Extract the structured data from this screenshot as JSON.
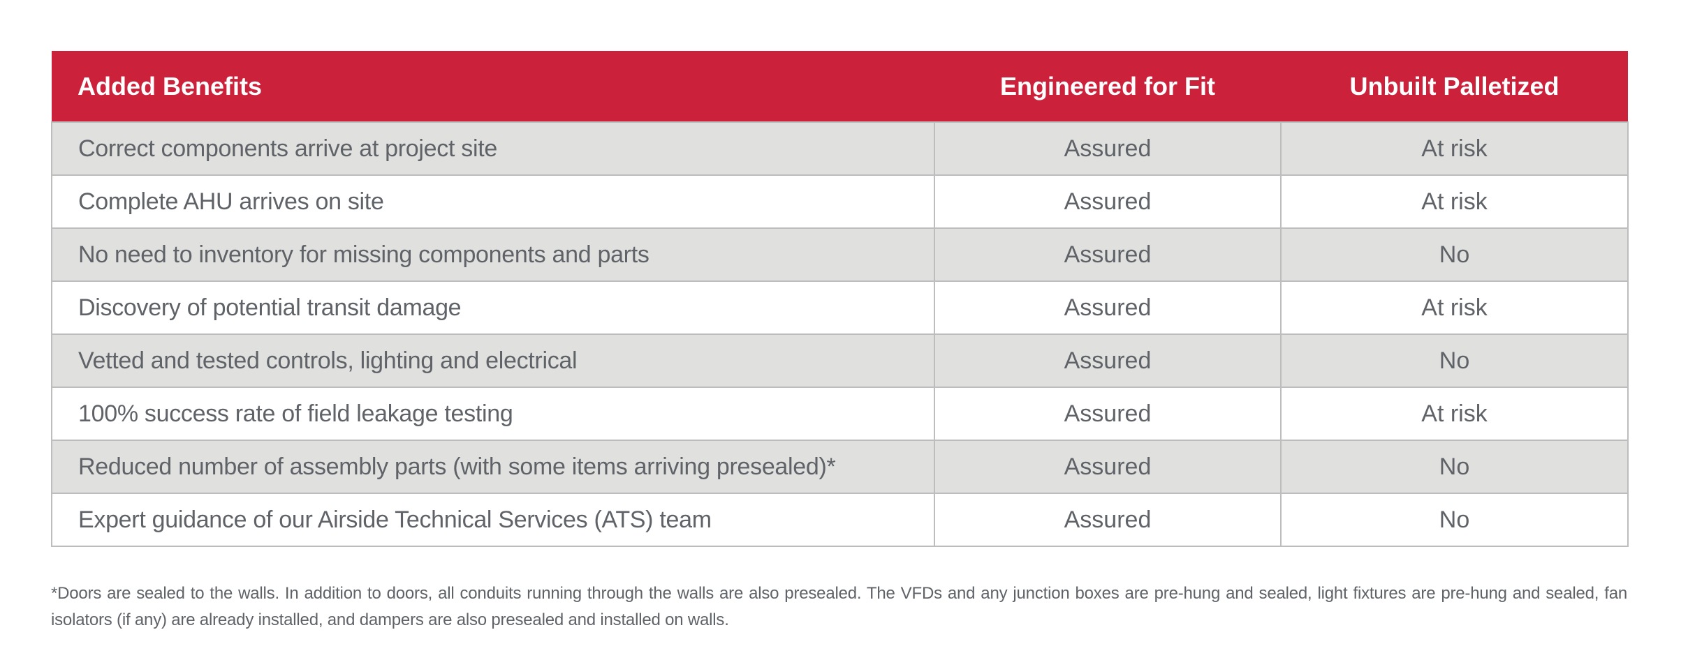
{
  "table": {
    "header": {
      "benefit": "Added Benefits",
      "col_engineered": "Engineered for Fit",
      "col_unbuilt": "Unbuilt Palletized"
    },
    "colors": {
      "header_bg": "#cc213a",
      "header_text": "#ffffff",
      "row_alt_bg": "#e0e0df",
      "row_bg": "#ffffff",
      "border": "#bdbdbd",
      "text": "#5f6368"
    },
    "rows": [
      {
        "benefit": "Correct components arrive at project site",
        "engineered": "Assured",
        "unbuilt": "At risk"
      },
      {
        "benefit": "Complete AHU arrives on site",
        "engineered": "Assured",
        "unbuilt": "At risk"
      },
      {
        "benefit": "No need to inventory for missing components and parts",
        "engineered": "Assured",
        "unbuilt": "No"
      },
      {
        "benefit": "Discovery of potential transit damage",
        "engineered": "Assured",
        "unbuilt": "At risk"
      },
      {
        "benefit": "Vetted and tested controls, lighting and electrical",
        "engineered": "Assured",
        "unbuilt": "No"
      },
      {
        "benefit": "100% success rate of field leakage testing",
        "engineered": "Assured",
        "unbuilt": "At risk"
      },
      {
        "benefit": "Reduced number of assembly parts (with some items arriving presealed)*",
        "engineered": "Assured",
        "unbuilt": "No"
      },
      {
        "benefit": "Expert guidance of our Airside Technical Services (ATS) team",
        "engineered": "Assured",
        "unbuilt": "No"
      }
    ]
  },
  "footnote": "*Doors are sealed to the walls. In addition to doors, all conduits running through the walls are also presealed. The VFDs and any junction boxes are pre-hung and sealed, light fixtures are pre-hung and sealed, fan isolators (if any) are already installed, and dampers are also presealed and installed on walls."
}
